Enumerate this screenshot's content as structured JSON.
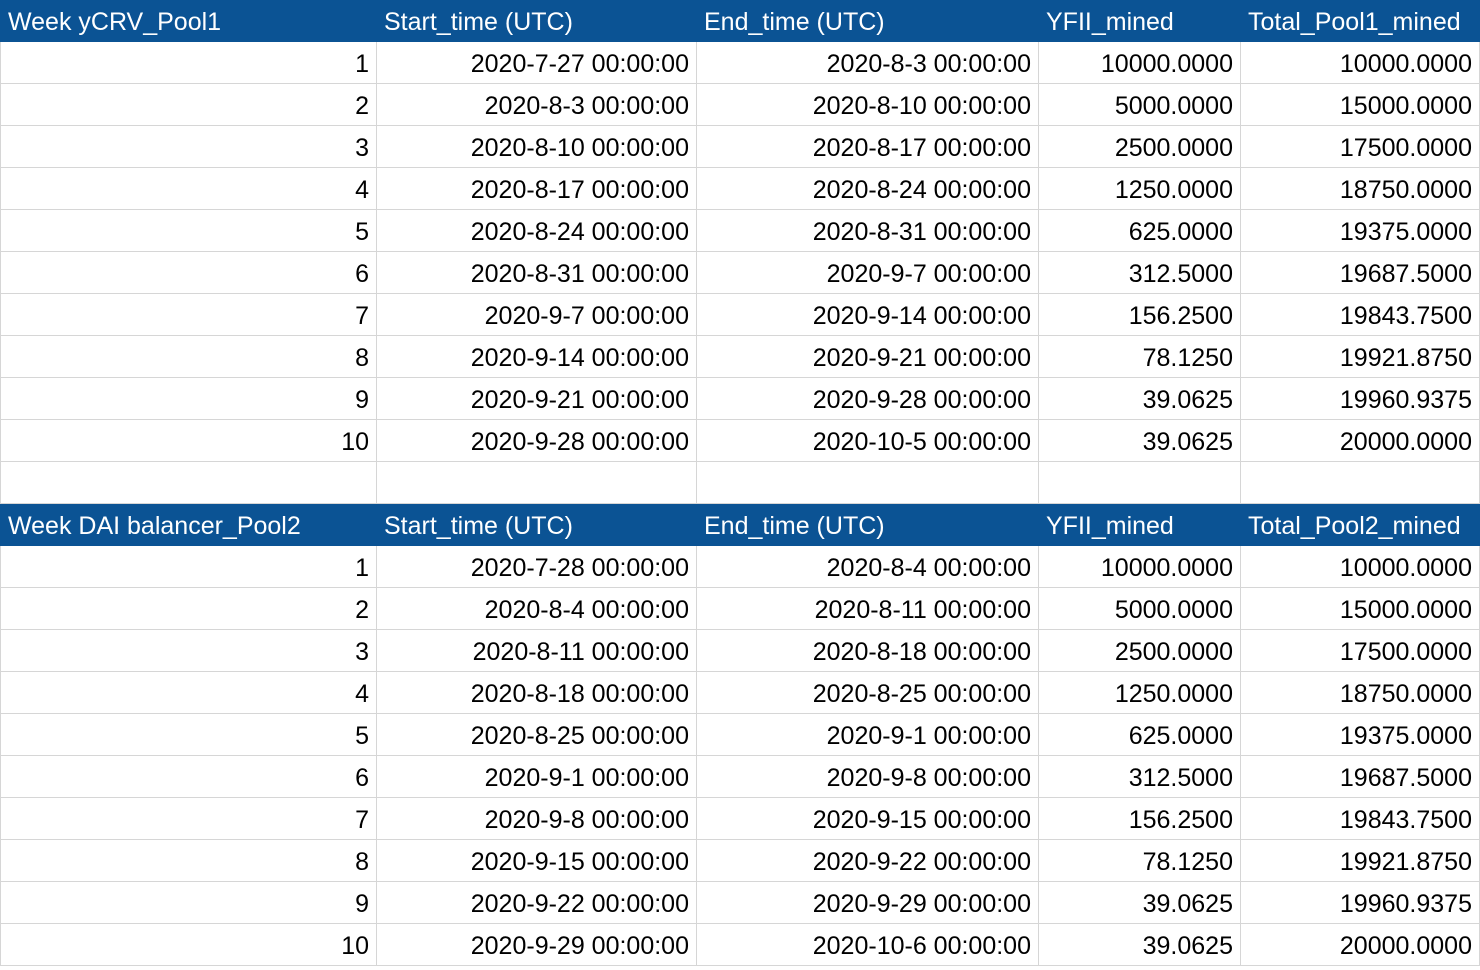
{
  "colors": {
    "header_bg": "#0b5394",
    "header_text": "#ffffff",
    "grid": "#d6d6d6"
  },
  "pool1": {
    "headers": [
      "Week  yCRV_Pool1",
      "Start_time (UTC)",
      "End_time (UTC)",
      "YFII_mined",
      "Total_Pool1_mined"
    ],
    "rows": [
      [
        "1",
        "2020-7-27 00:00:00",
        "2020-8-3 00:00:00",
        "10000.0000",
        "10000.0000"
      ],
      [
        "2",
        "2020-8-3 00:00:00",
        "2020-8-10 00:00:00",
        "5000.0000",
        "15000.0000"
      ],
      [
        "3",
        "2020-8-10 00:00:00",
        "2020-8-17 00:00:00",
        "2500.0000",
        "17500.0000"
      ],
      [
        "4",
        "2020-8-17 00:00:00",
        "2020-8-24 00:00:00",
        "1250.0000",
        "18750.0000"
      ],
      [
        "5",
        "2020-8-24 00:00:00",
        "2020-8-31 00:00:00",
        "625.0000",
        "19375.0000"
      ],
      [
        "6",
        "2020-8-31 00:00:00",
        "2020-9-7 00:00:00",
        "312.5000",
        "19687.5000"
      ],
      [
        "7",
        "2020-9-7 00:00:00",
        "2020-9-14 00:00:00",
        "156.2500",
        "19843.7500"
      ],
      [
        "8",
        "2020-9-14 00:00:00",
        "2020-9-21 00:00:00",
        "78.1250",
        "19921.8750"
      ],
      [
        "9",
        "2020-9-21 00:00:00",
        "2020-9-28 00:00:00",
        "39.0625",
        "19960.9375"
      ],
      [
        "10",
        "2020-9-28 00:00:00",
        "2020-10-5 00:00:00",
        "39.0625",
        "20000.0000"
      ]
    ]
  },
  "pool2": {
    "headers": [
      "Week  DAI balancer_Pool2",
      "Start_time (UTC)",
      "End_time (UTC)",
      "YFII_mined",
      "Total_Pool2_mined"
    ],
    "rows": [
      [
        "1",
        "2020-7-28 00:00:00",
        "2020-8-4 00:00:00",
        "10000.0000",
        "10000.0000"
      ],
      [
        "2",
        "2020-8-4 00:00:00",
        "2020-8-11 00:00:00",
        "5000.0000",
        "15000.0000"
      ],
      [
        "3",
        "2020-8-11 00:00:00",
        "2020-8-18 00:00:00",
        "2500.0000",
        "17500.0000"
      ],
      [
        "4",
        "2020-8-18 00:00:00",
        "2020-8-25 00:00:00",
        "1250.0000",
        "18750.0000"
      ],
      [
        "5",
        "2020-8-25 00:00:00",
        "2020-9-1 00:00:00",
        "625.0000",
        "19375.0000"
      ],
      [
        "6",
        "2020-9-1 00:00:00",
        "2020-9-8 00:00:00",
        "312.5000",
        "19687.5000"
      ],
      [
        "7",
        "2020-9-8 00:00:00",
        "2020-9-15 00:00:00",
        "156.2500",
        "19843.7500"
      ],
      [
        "8",
        "2020-9-15 00:00:00",
        "2020-9-22 00:00:00",
        "78.1250",
        "19921.8750"
      ],
      [
        "9",
        "2020-9-22 00:00:00",
        "2020-9-29 00:00:00",
        "39.0625",
        "19960.9375"
      ],
      [
        "10",
        "2020-9-29 00:00:00",
        "2020-10-6 00:00:00",
        "39.0625",
        "20000.0000"
      ]
    ]
  }
}
